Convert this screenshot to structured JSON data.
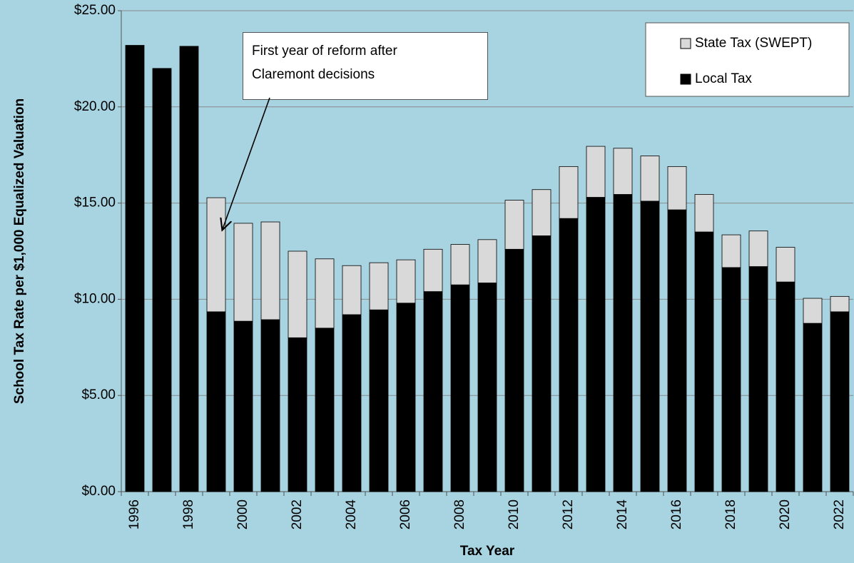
{
  "chart_data": {
    "type": "stacked_bar",
    "categories": [
      "1996",
      null,
      "1998",
      null,
      "2000",
      null,
      "2002",
      null,
      "2004",
      null,
      "2006",
      null,
      "2008",
      null,
      "2010",
      null,
      "2012",
      null,
      "2014",
      null,
      "2016",
      null,
      "2018",
      null,
      "2020",
      null,
      "2022"
    ],
    "series": [
      {
        "name": "Local Tax",
        "color": "#000000",
        "values": [
          23.2,
          22.0,
          23.15,
          9.35,
          8.86,
          8.94,
          8.0,
          8.5,
          9.2,
          9.45,
          9.8,
          10.4,
          10.75,
          10.85,
          12.6,
          13.3,
          14.2,
          15.3,
          15.45,
          15.1,
          14.65,
          13.5,
          11.65,
          11.7,
          10.9,
          8.75,
          9.35
        ]
      },
      {
        "name": "State Tax (SWEPT)",
        "color": "#d9d9d9",
        "values": [
          null,
          null,
          null,
          5.93,
          5.09,
          5.08,
          4.5,
          3.6,
          2.55,
          2.45,
          2.25,
          2.2,
          2.1,
          2.25,
          2.55,
          2.4,
          2.7,
          2.65,
          2.4,
          2.35,
          2.25,
          1.95,
          1.7,
          1.85,
          1.8,
          1.3,
          0.8
        ]
      }
    ],
    "ylim": [
      0,
      25
    ],
    "yticks": [
      {
        "value": 0,
        "label": "$0.00"
      },
      {
        "value": 5,
        "label": "$5.00"
      },
      {
        "value": 10,
        "label": "$10.00"
      },
      {
        "value": 15,
        "label": "$15.00"
      },
      {
        "value": 20,
        "label": "$20.00"
      },
      {
        "value": 25,
        "label": "$25.00"
      }
    ],
    "grid": true,
    "legend": "upper right",
    "x_label": "Tax Year",
    "y_label": "School Tax Rate per $1,000 Equalized Valuation",
    "annotation": "First year of reform after Claremont decisions"
  }
}
